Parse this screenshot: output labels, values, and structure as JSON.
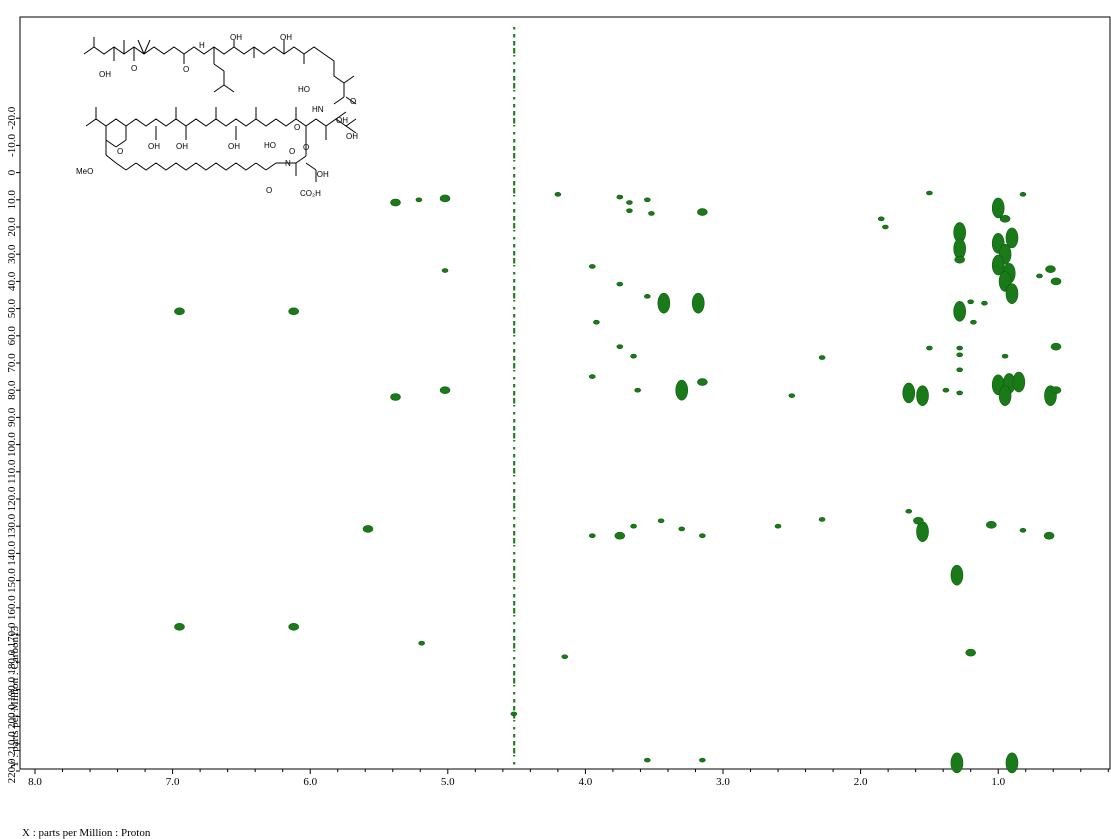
{
  "chart_data": {
    "type": "scatter",
    "xlabel": "X : parts per Million : Proton",
    "ylabel": "Y : parts per Million : Carbon13",
    "xlim": [
      8.0,
      0.1
    ],
    "ylim": [
      -23.0,
      225.0
    ],
    "x_reversed": true,
    "y_inverted": true,
    "x_ticks": [
      "8.0",
      "7.0",
      "6.0",
      "5.0",
      "4.0",
      "3.0",
      "2.0",
      "1.0"
    ],
    "x_tick_values": [
      8.0,
      7.0,
      6.0,
      5.0,
      4.0,
      3.0,
      2.0,
      1.0
    ],
    "y_ticks": [
      "-20.0",
      "-10.0",
      "0",
      "10.0",
      "20.0",
      "30.0",
      "40.0",
      "50.0",
      "60.0",
      "70.0",
      "80.0",
      "90.0",
      "100.0",
      "110.0",
      "120.0",
      "130.0",
      "140.0",
      "150.0",
      "160.0",
      "170.0",
      "180.0",
      "190.0",
      "200.0",
      "210.0",
      "220.0"
    ],
    "y_tick_values": [
      -20,
      -10,
      0,
      10,
      20,
      30,
      40,
      50,
      60,
      70,
      80,
      90,
      100,
      110,
      120,
      130,
      140,
      150,
      160,
      170,
      180,
      190,
      200,
      210,
      220
    ],
    "grid": false,
    "series": [
      {
        "color": "#1a7a1a",
        "points": [
          [
            6.95,
            51.0,
            "m"
          ],
          [
            6.12,
            51.0,
            "m"
          ],
          [
            6.95,
            167.0,
            "m"
          ],
          [
            6.12,
            167.0,
            "m"
          ],
          [
            5.02,
            9.5,
            "m"
          ],
          [
            5.38,
            11.0,
            "m"
          ],
          [
            5.21,
            10.0,
            "s"
          ],
          [
            5.02,
            36.0,
            "s"
          ],
          [
            5.38,
            82.5,
            "m"
          ],
          [
            5.02,
            80.0,
            "m"
          ],
          [
            5.58,
            131.0,
            "m"
          ],
          [
            5.19,
            173.0,
            "s"
          ],
          [
            4.2,
            8.0,
            "s"
          ],
          [
            3.75,
            9.0,
            "s"
          ],
          [
            3.68,
            11.0,
            "s"
          ],
          [
            3.55,
            10.0,
            "s"
          ],
          [
            3.68,
            14.0,
            "s"
          ],
          [
            3.52,
            15.0,
            "s"
          ],
          [
            3.15,
            14.5,
            "m"
          ],
          [
            3.43,
            48.0,
            "l"
          ],
          [
            3.18,
            48.0,
            "l"
          ],
          [
            3.55,
            45.5,
            "s"
          ],
          [
            3.75,
            41.0,
            "s"
          ],
          [
            3.92,
            55.0,
            "s"
          ],
          [
            3.95,
            34.5,
            "s"
          ],
          [
            3.75,
            64.0,
            "s"
          ],
          [
            3.65,
            67.5,
            "s"
          ],
          [
            3.95,
            75.0,
            "s"
          ],
          [
            3.62,
            80.0,
            "s"
          ],
          [
            3.15,
            77.0,
            "m"
          ],
          [
            3.3,
            80.0,
            "l"
          ],
          [
            2.5,
            82.0,
            "s"
          ],
          [
            3.95,
            133.5,
            "s"
          ],
          [
            3.75,
            133.5,
            "m"
          ],
          [
            3.65,
            130.0,
            "s"
          ],
          [
            3.45,
            128.0,
            "s"
          ],
          [
            3.3,
            131.0,
            "s"
          ],
          [
            3.15,
            133.5,
            "s"
          ],
          [
            4.15,
            178.0,
            "s"
          ],
          [
            3.55,
            216.0,
            "s"
          ],
          [
            3.15,
            216.0,
            "s"
          ],
          [
            4.52,
            199.0,
            "s"
          ],
          [
            2.28,
            68.0,
            "s"
          ],
          [
            1.5,
            64.5,
            "s"
          ],
          [
            1.28,
            64.5,
            "s"
          ],
          [
            1.28,
            67.0,
            "s"
          ],
          [
            1.28,
            72.5,
            "s"
          ],
          [
            1.65,
            81.0,
            "l"
          ],
          [
            1.55,
            82.0,
            "l"
          ],
          [
            1.38,
            80.0,
            "s"
          ],
          [
            1.28,
            81.0,
            "s"
          ],
          [
            1.0,
            78.0,
            "l"
          ],
          [
            0.92,
            77.5,
            "l"
          ],
          [
            0.85,
            77.0,
            "l"
          ],
          [
            0.95,
            82.0,
            "l"
          ],
          [
            0.62,
            82.0,
            "l"
          ],
          [
            0.58,
            80.0,
            "m"
          ],
          [
            0.58,
            64.0,
            "m"
          ],
          [
            0.95,
            67.5,
            "s"
          ],
          [
            1.0,
            13.0,
            "l"
          ],
          [
            0.95,
            17.0,
            "m"
          ],
          [
            1.28,
            22.0,
            "l"
          ],
          [
            1.28,
            28.0,
            "l"
          ],
          [
            1.28,
            32.0,
            "m"
          ],
          [
            1.0,
            26.0,
            "l"
          ],
          [
            0.95,
            30.0,
            "l"
          ],
          [
            0.9,
            24.0,
            "l"
          ],
          [
            1.0,
            34.0,
            "l"
          ],
          [
            0.92,
            37.0,
            "l"
          ],
          [
            0.95,
            40.0,
            "l"
          ],
          [
            0.9,
            44.5,
            "l"
          ],
          [
            1.28,
            51.0,
            "l"
          ],
          [
            1.2,
            47.5,
            "s"
          ],
          [
            1.1,
            48.0,
            "s"
          ],
          [
            1.18,
            55.0,
            "s"
          ],
          [
            0.62,
            35.5,
            "m"
          ],
          [
            0.58,
            40.0,
            "m"
          ],
          [
            0.7,
            38.0,
            "s"
          ],
          [
            1.55,
            132.0,
            "l"
          ],
          [
            1.58,
            128.0,
            "m"
          ],
          [
            1.65,
            124.5,
            "s"
          ],
          [
            1.3,
            148.0,
            "l"
          ],
          [
            1.2,
            176.5,
            "m"
          ],
          [
            1.3,
            217.0,
            "l"
          ],
          [
            0.9,
            217.0,
            "l"
          ],
          [
            1.05,
            129.5,
            "m"
          ],
          [
            0.63,
            133.5,
            "m"
          ],
          [
            1.82,
            20.0,
            "s"
          ],
          [
            1.85,
            17.0,
            "s"
          ],
          [
            1.5,
            7.5,
            "s"
          ],
          [
            0.82,
            8.0,
            "s"
          ],
          [
            2.28,
            127.5,
            "s"
          ],
          [
            2.6,
            130.0,
            "s"
          ],
          [
            0.82,
            131.5,
            "s"
          ]
        ]
      }
    ],
    "noise_columns": [
      4.515,
      4.52
    ],
    "structure_labels": {
      "oh_1": "OH",
      "oh_2": "OH",
      "oh_3": "OH",
      "oh_4": "OH",
      "oh_5": "OH",
      "oh_6": "OH",
      "oh_7": "OH",
      "oh_8": "OH",
      "ho_1": "HO",
      "ho_2": "HO",
      "hn_1": "HN",
      "h_1": "H",
      "n_1": "N",
      "o_1": "O",
      "o_2": "O",
      "o_3": "O",
      "o_4": "O",
      "o_5": "O",
      "o_6": "O",
      "o_7": "O",
      "o_8": "O",
      "meo": "MeO",
      "co2h": "CO₂H",
      "oh_stereo": "’OH"
    }
  }
}
